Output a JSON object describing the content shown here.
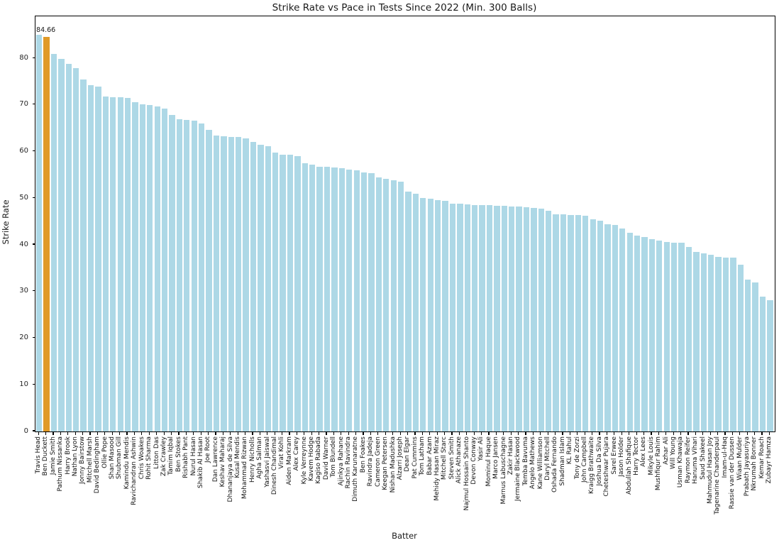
{
  "figure": {
    "title": "Strike Rate vs Pace in Tests Since 2022 (Min. 300 Balls)"
  },
  "chart_data": {
    "type": "bar",
    "title": "Strike Rate vs Pace in Tests Since 2022 (Min. 300 Balls)",
    "xlabel": "Batter",
    "ylabel": "Strike Rate",
    "ylim": [
      0,
      89
    ],
    "yticks": [
      0,
      10,
      20,
      30,
      40,
      50,
      60,
      70,
      80
    ],
    "grid": false,
    "legend": false,
    "bar_color": "#ADD8E6",
    "highlight": {
      "category": "Ben Duckett",
      "index": 1,
      "color": "#E09A28",
      "annotation_label": "84.66"
    },
    "categories": [
      "Travis Head",
      "Ben Duckett",
      "Jamie Smith",
      "Pathum Nissanka",
      "Harry Brook",
      "Nathan Lyon",
      "Jonny Bairstow",
      "Mitchell Marsh",
      "David Bedingham",
      "Ollie Pope",
      "Shan Masood",
      "Shubman Gill",
      "Kamindu Mendis",
      "Ravichandran Ashwin",
      "Chris Woakes",
      "Rohit Sharma",
      "Litton Das",
      "Zak Crawley",
      "Tamim Iqbal",
      "Ben Stokes",
      "Rishabh Pant",
      "Nurul Hasan",
      "Shakib Al Hasan",
      "Joe Root",
      "Dan Lawrence",
      "Keshav Maharaj",
      "Dhananjaya de Silva",
      "Kusal Mendis",
      "Mohammad Rizwan",
      "Henry Nicholls",
      "Agha Salman",
      "Yashasvi Jaiswal",
      "Dinesh Chandimal",
      "Virat Kohli",
      "Aiden Markram",
      "Alex Carey",
      "Kyle Verreynne",
      "Kavem Hodge",
      "Kagiso Rabada",
      "David Warner",
      "Tom Blundell",
      "Ajinkya Rahane",
      "Rachin Ravindra",
      "Dimuth Karunaratne",
      "Ben Foakes",
      "Ravindra Jadeja",
      "Cameron Green",
      "Keegan Petersen",
      "Nishan Madushka",
      "Alzarri Joseph",
      "Dean Elgar",
      "Pat Cummins",
      "Tom Latham",
      "Babar Azam",
      "Mehidy Hasan Miraz",
      "Mitchell Starc",
      "Steven Smith",
      "Alick Athanaze",
      "Najmul Hossain Shanto",
      "Devon Conway",
      "Yasir Ali",
      "Mominul Haque",
      "Marco Jansen",
      "Marnus Labuschagne",
      "Zakir Hasan",
      "Jermaine Blackwood",
      "Temba Bavuma",
      "Angelo Mathews",
      "Kane Williamson",
      "Daryl Mitchell",
      "Oshada Fernando",
      "Shadman Islam",
      "KL Rahul",
      "Tony de Zorzi",
      "John Campbell",
      "Kraigg Brathwaite",
      "Joshua Da Silva",
      "Cheteshwar Pujara",
      "Sarel Erwee",
      "Jason Holder",
      "Abdullah Shafique",
      "Harry Tector",
      "Alex Lees",
      "Mikyle Louis",
      "Mushfiqur Rahim",
      "Azhar Ali",
      "Will Young",
      "Usman Khawaja",
      "Raymon Reifer",
      "Hanuma Vihari",
      "Saud Shakeel",
      "Mahmudul Hasan Joy",
      "Tagenarine Chanderpaul",
      "Imam-ul-Haq",
      "Rassie van der Dussen",
      "Wiaan Mulder",
      "Prabath Jayasuriya",
      "Nkrumah Bonner",
      "Kemar Roach",
      "Zubayr Hamza"
    ],
    "values": [
      85.0,
      84.66,
      80.9,
      79.8,
      78.8,
      77.9,
      75.5,
      74.3,
      74.0,
      71.8,
      71.7,
      71.6,
      71.5,
      70.6,
      70.2,
      70.0,
      69.7,
      69.3,
      67.8,
      66.9,
      66.8,
      66.7,
      66.0,
      64.6,
      63.5,
      63.3,
      63.2,
      63.1,
      62.9,
      62.0,
      61.4,
      61.2,
      59.8,
      59.4,
      59.3,
      59.0,
      57.5,
      57.2,
      56.8,
      56.7,
      56.6,
      56.4,
      56.2,
      56.0,
      55.5,
      55.4,
      54.4,
      54.2,
      53.8,
      53.5,
      51.4,
      51.0,
      50.1,
      49.9,
      49.6,
      49.4,
      48.9,
      48.8,
      48.7,
      48.6,
      48.6,
      48.5,
      48.4,
      48.4,
      48.3,
      48.2,
      48.1,
      48.0,
      47.8,
      47.3,
      46.6,
      46.5,
      46.4,
      46.4,
      46.2,
      45.5,
      45.2,
      44.4,
      44.2,
      43.5,
      42.6,
      42.0,
      41.7,
      41.3,
      41.0,
      40.6,
      40.5,
      40.4,
      39.5,
      38.5,
      38.2,
      37.9,
      37.4,
      37.3,
      37.2,
      35.8,
      32.5,
      31.9,
      28.9,
      28.2
    ]
  }
}
